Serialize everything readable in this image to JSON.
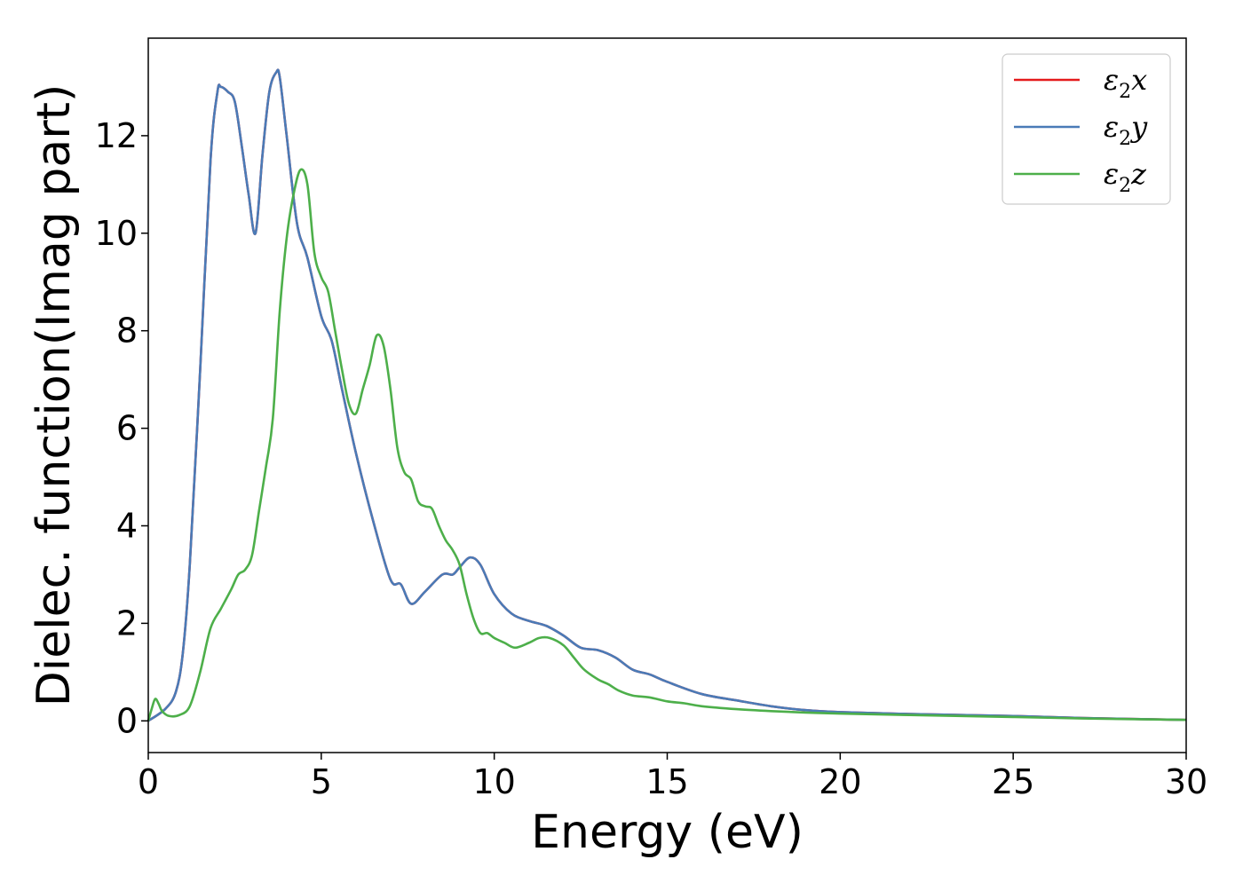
{
  "chart_data": {
    "type": "line",
    "title": "",
    "xlabel": "Energy (eV)",
    "ylabel": "Dielec. function(Imag part)",
    "xlim": [
      0,
      30
    ],
    "ylim": [
      -0.65,
      14.0
    ],
    "xticks": [
      0,
      5,
      10,
      15,
      20,
      25,
      30
    ],
    "yticks": [
      0,
      2,
      4,
      6,
      8,
      10,
      12
    ],
    "grid": false,
    "legend_position": "top-right",
    "series": [
      {
        "name": "ε₂x",
        "legend_main": "ε",
        "legend_sub": "2",
        "legend_suffix": "x",
        "color": "#e41a1c",
        "x": [
          0,
          0.5,
          0.8,
          1.0,
          1.2,
          1.5,
          1.8,
          2.0,
          2.1,
          2.3,
          2.5,
          2.7,
          2.9,
          3.1,
          3.3,
          3.5,
          3.7,
          3.8,
          4.0,
          4.3,
          4.6,
          5.0,
          5.3,
          5.6,
          6.0,
          6.5,
          7.0,
          7.3,
          7.6,
          8.0,
          8.5,
          8.8,
          9.0,
          9.3,
          9.6,
          10.0,
          10.5,
          11.0,
          11.5,
          12.0,
          12.5,
          13.0,
          13.5,
          14.0,
          14.5,
          15.0,
          16.0,
          17.0,
          18.0,
          19.0,
          20.0,
          22.0,
          25.0,
          27.0,
          30.0
        ],
        "values": [
          0.0,
          0.25,
          0.6,
          1.4,
          3.2,
          7.2,
          11.5,
          12.9,
          13.0,
          12.9,
          12.7,
          11.8,
          10.8,
          10.0,
          11.6,
          12.9,
          13.3,
          13.2,
          12.0,
          10.2,
          9.5,
          8.3,
          7.8,
          6.8,
          5.5,
          4.1,
          2.9,
          2.8,
          2.4,
          2.65,
          3.0,
          3.0,
          3.15,
          3.35,
          3.2,
          2.6,
          2.2,
          2.05,
          1.95,
          1.75,
          1.5,
          1.45,
          1.3,
          1.05,
          0.95,
          0.8,
          0.55,
          0.42,
          0.3,
          0.22,
          0.18,
          0.14,
          0.1,
          0.06,
          0.02
        ]
      },
      {
        "name": "ε₂y",
        "legend_main": "ε",
        "legend_sub": "2",
        "legend_suffix": "y",
        "color": "#4a7bb7",
        "x": [
          0,
          0.5,
          0.8,
          1.0,
          1.2,
          1.5,
          1.8,
          2.0,
          2.1,
          2.3,
          2.5,
          2.7,
          2.9,
          3.1,
          3.3,
          3.5,
          3.7,
          3.8,
          4.0,
          4.3,
          4.6,
          5.0,
          5.3,
          5.6,
          6.0,
          6.5,
          7.0,
          7.3,
          7.6,
          8.0,
          8.5,
          8.8,
          9.0,
          9.3,
          9.6,
          10.0,
          10.5,
          11.0,
          11.5,
          12.0,
          12.5,
          13.0,
          13.5,
          14.0,
          14.5,
          15.0,
          16.0,
          17.0,
          18.0,
          19.0,
          20.0,
          22.0,
          25.0,
          27.0,
          30.0
        ],
        "values": [
          0.0,
          0.25,
          0.6,
          1.4,
          3.2,
          7.2,
          11.5,
          12.9,
          13.0,
          12.9,
          12.7,
          11.8,
          10.8,
          10.0,
          11.6,
          12.9,
          13.3,
          13.2,
          12.0,
          10.2,
          9.5,
          8.3,
          7.8,
          6.8,
          5.5,
          4.1,
          2.9,
          2.8,
          2.4,
          2.65,
          3.0,
          3.0,
          3.15,
          3.35,
          3.2,
          2.6,
          2.2,
          2.05,
          1.95,
          1.75,
          1.5,
          1.45,
          1.3,
          1.05,
          0.95,
          0.8,
          0.55,
          0.42,
          0.3,
          0.22,
          0.18,
          0.14,
          0.1,
          0.06,
          0.02
        ]
      },
      {
        "name": "ε₂z",
        "legend_main": "ε",
        "legend_sub": "2",
        "legend_suffix": "z",
        "color": "#4daf4a",
        "x": [
          0,
          0.1,
          0.2,
          0.3,
          0.4,
          0.6,
          0.9,
          1.2,
          1.5,
          1.8,
          2.1,
          2.4,
          2.6,
          2.8,
          3.0,
          3.2,
          3.4,
          3.6,
          3.8,
          4.0,
          4.2,
          4.4,
          4.6,
          4.8,
          5.0,
          5.2,
          5.4,
          5.6,
          5.8,
          6.0,
          6.2,
          6.4,
          6.6,
          6.8,
          7.0,
          7.2,
          7.4,
          7.6,
          7.8,
          8.0,
          8.2,
          8.4,
          8.6,
          8.8,
          9.0,
          9.2,
          9.4,
          9.6,
          9.8,
          10.0,
          10.3,
          10.6,
          11.0,
          11.3,
          11.6,
          12.0,
          12.3,
          12.6,
          13.0,
          13.3,
          13.6,
          14.0,
          14.5,
          15.0,
          15.5,
          16.0,
          17.0,
          18.0,
          19.0,
          20.0,
          22.0,
          25.0,
          27.0,
          30.0
        ],
        "values": [
          0.0,
          0.25,
          0.45,
          0.35,
          0.2,
          0.1,
          0.12,
          0.3,
          1.0,
          1.9,
          2.3,
          2.7,
          3.0,
          3.1,
          3.4,
          4.3,
          5.2,
          6.2,
          8.4,
          9.9,
          10.8,
          11.3,
          11.0,
          9.6,
          9.1,
          8.8,
          8.0,
          7.2,
          6.5,
          6.3,
          6.8,
          7.3,
          7.9,
          7.7,
          6.8,
          5.6,
          5.1,
          4.95,
          4.5,
          4.4,
          4.35,
          4.0,
          3.7,
          3.5,
          3.2,
          2.6,
          2.1,
          1.8,
          1.8,
          1.7,
          1.6,
          1.5,
          1.6,
          1.7,
          1.7,
          1.55,
          1.3,
          1.05,
          0.85,
          0.75,
          0.62,
          0.52,
          0.48,
          0.4,
          0.36,
          0.3,
          0.24,
          0.2,
          0.17,
          0.15,
          0.12,
          0.08,
          0.05,
          0.02
        ]
      }
    ]
  }
}
